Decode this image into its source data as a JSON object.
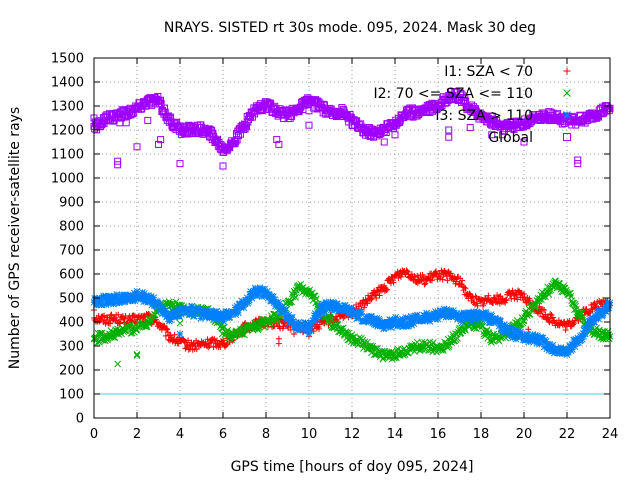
{
  "chart_data": {
    "type": "scatter",
    "title": "NRAYS. SISTED rt 30s mode. 095, 2024. Mask 30 deg",
    "xlabel": "GPS time [hours of doy 095, 2024]",
    "ylabel": "Number of GPS receiver-satellite rays",
    "xlim": [
      0,
      24
    ],
    "ylim": [
      0,
      1500
    ],
    "xticks": [
      0,
      2,
      4,
      6,
      8,
      10,
      12,
      14,
      16,
      18,
      20,
      22,
      24
    ],
    "yticks": [
      0,
      100,
      200,
      300,
      400,
      500,
      600,
      700,
      800,
      900,
      1000,
      1100,
      1200,
      1300,
      1400,
      1500
    ],
    "grid": true,
    "legend_position": "top-right",
    "reference_line": {
      "y": 100,
      "color": "#40d0e0"
    },
    "series": [
      {
        "name": "I1: SZA < 70",
        "marker": "+",
        "color": "#ff0000",
        "x": [
          0,
          0.5,
          1,
          1.5,
          2,
          2.5,
          3,
          3.5,
          4,
          4.5,
          5,
          5.5,
          6,
          6.5,
          7,
          7.5,
          8,
          8.5,
          9,
          9.5,
          10,
          10.5,
          11,
          11.5,
          12,
          12.5,
          13,
          13.5,
          14,
          14.5,
          15,
          15.5,
          16,
          16.5,
          17,
          17.5,
          18,
          18.5,
          19,
          19.5,
          20,
          20.5,
          21,
          21.5,
          22,
          22.5,
          23,
          23.5,
          24
        ],
        "y": [
          420,
          410,
          415,
          405,
          410,
          420,
          395,
          340,
          315,
          300,
          305,
          315,
          310,
          345,
          375,
          390,
          400,
          395,
          390,
          380,
          370,
          390,
          410,
          420,
          440,
          470,
          510,
          540,
          590,
          615,
          580,
          575,
          600,
          590,
          570,
          500,
          480,
          500,
          490,
          520,
          500,
          460,
          430,
          400,
          380,
          420,
          450,
          470,
          480
        ],
        "outliers": [
          [
            0,
            450
          ],
          [
            8.6,
            330
          ],
          [
            8.6,
            310
          ],
          [
            9.3,
            350
          ],
          [
            10,
            340
          ],
          [
            18.5,
            420
          ],
          [
            20.2,
            370
          ]
        ]
      },
      {
        "name": "I2: 70 <= SZA <= 110",
        "marker": "x",
        "color": "#00b000",
        "x": [
          0,
          0.5,
          1,
          1.5,
          2,
          2.5,
          3,
          3.5,
          4,
          4.5,
          5,
          5.5,
          6,
          6.5,
          7,
          7.5,
          8,
          8.5,
          9,
          9.5,
          10,
          10.5,
          11,
          11.5,
          12,
          12.5,
          13,
          13.5,
          14,
          14.5,
          15,
          15.5,
          16,
          16.5,
          17,
          17.5,
          18,
          18.5,
          19,
          19.5,
          20,
          20.5,
          21,
          21.5,
          22,
          22.5,
          23,
          23.5,
          24
        ],
        "y": [
          330,
          340,
          350,
          370,
          375,
          400,
          460,
          470,
          460,
          440,
          450,
          430,
          365,
          340,
          360,
          380,
          400,
          420,
          470,
          540,
          530,
          460,
          400,
          370,
          330,
          310,
          280,
          260,
          265,
          280,
          300,
          300,
          290,
          310,
          360,
          400,
          380,
          330,
          340,
          370,
          420,
          470,
          520,
          560,
          530,
          440,
          380,
          350,
          340
        ],
        "outliers": [
          [
            1.1,
            225
          ],
          [
            2,
            260
          ],
          [
            2,
            265
          ],
          [
            4,
            420
          ],
          [
            4,
            395
          ]
        ]
      },
      {
        "name": "I3: SZA > 110",
        "marker": "*",
        "color": "#0080ff",
        "x": [
          0,
          0.5,
          1,
          1.5,
          2,
          2.5,
          3,
          3.5,
          4,
          4.5,
          5,
          5.5,
          6,
          6.5,
          7,
          7.5,
          8,
          8.5,
          9,
          9.5,
          10,
          10.5,
          11,
          11.5,
          12,
          12.5,
          13,
          13.5,
          14,
          14.5,
          15,
          15.5,
          16,
          16.5,
          17,
          17.5,
          18,
          18.5,
          19,
          19.5,
          20,
          20.5,
          21,
          21.5,
          22,
          22.5,
          23,
          23.5,
          24
        ],
        "y": [
          480,
          490,
          495,
          500,
          510,
          500,
          470,
          420,
          440,
          450,
          430,
          430,
          420,
          440,
          480,
          530,
          520,
          480,
          420,
          380,
          380,
          450,
          470,
          460,
          440,
          420,
          400,
          390,
          400,
          400,
          410,
          420,
          430,
          440,
          420,
          420,
          430,
          410,
          380,
          350,
          340,
          330,
          310,
          280,
          280,
          320,
          380,
          430,
          480
        ],
        "outliers": [
          [
            4,
            350
          ],
          [
            10,
            350
          ]
        ]
      },
      {
        "name": "Global",
        "marker": "square",
        "color": "#a000ff",
        "x": [
          0,
          0.5,
          1,
          1.5,
          2,
          2.5,
          3,
          3.5,
          4,
          4.5,
          5,
          5.5,
          6,
          6.5,
          7,
          7.5,
          8,
          8.5,
          9,
          9.5,
          10,
          10.5,
          11,
          11.5,
          12,
          12.5,
          13,
          13.5,
          14,
          14.5,
          15,
          15.5,
          16,
          16.5,
          17,
          17.5,
          18,
          18.5,
          19,
          19.5,
          20,
          20.5,
          21,
          21.5,
          22,
          22.5,
          23,
          23.5,
          24
        ],
        "y": [
          1210,
          1240,
          1260,
          1270,
          1290,
          1320,
          1320,
          1240,
          1200,
          1200,
          1205,
          1180,
          1120,
          1150,
          1220,
          1290,
          1300,
          1280,
          1260,
          1290,
          1320,
          1300,
          1270,
          1280,
          1240,
          1200,
          1190,
          1200,
          1230,
          1270,
          1275,
          1290,
          1300,
          1340,
          1340,
          1290,
          1260,
          1240,
          1210,
          1220,
          1230,
          1250,
          1260,
          1250,
          1240,
          1240,
          1250,
          1270,
          1290
        ],
        "outliers": [
          [
            0,
            1250
          ],
          [
            1.1,
            1070
          ],
          [
            1.1,
            1055
          ],
          [
            1.2,
            1230
          ],
          [
            1.5,
            1230
          ],
          [
            2,
            1130
          ],
          [
            2.5,
            1240
          ],
          [
            3,
            1140
          ],
          [
            3.1,
            1160
          ],
          [
            4,
            1060
          ],
          [
            5.5,
            1160
          ],
          [
            6,
            1050
          ],
          [
            8.5,
            1160
          ],
          [
            8.6,
            1140
          ],
          [
            10,
            1220
          ],
          [
            10,
            1280
          ],
          [
            12,
            1220
          ],
          [
            13,
            1170
          ],
          [
            13.5,
            1150
          ],
          [
            14,
            1180
          ],
          [
            16.5,
            1200
          ],
          [
            16.5,
            1170
          ],
          [
            17.5,
            1210
          ],
          [
            18.5,
            1220
          ],
          [
            18.5,
            1180
          ],
          [
            19,
            1180
          ],
          [
            20,
            1150
          ],
          [
            22.5,
            1075
          ],
          [
            22.5,
            1060
          ]
        ]
      }
    ]
  }
}
